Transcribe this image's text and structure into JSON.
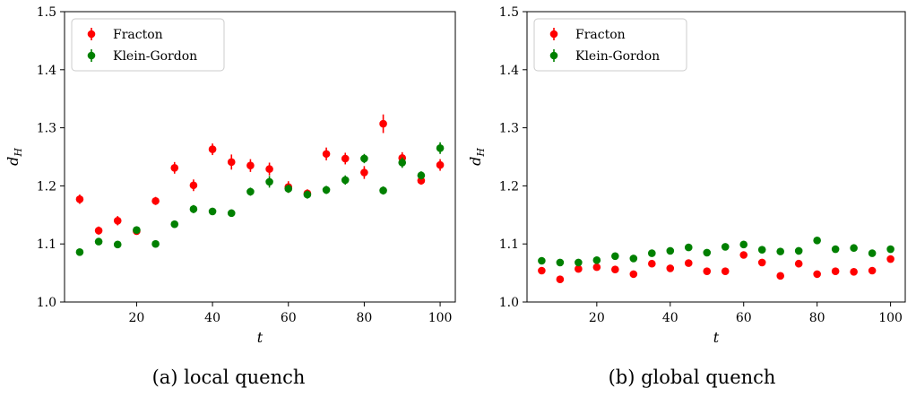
{
  "captions": [
    "(a) local quench",
    "(b) global quench"
  ],
  "chart_data": [
    {
      "type": "scatter",
      "xlabel": "t",
      "ylabel": "d_H",
      "xlim": [
        1,
        104
      ],
      "ylim": [
        1.0,
        1.5
      ],
      "xticks": [
        20,
        40,
        60,
        80,
        100
      ],
      "yticks": [
        1.0,
        1.1,
        1.2,
        1.3,
        1.4,
        1.5
      ],
      "legend_position": "top-left",
      "grid": false,
      "series": [
        {
          "name": "Fracton",
          "color": "#ff0000",
          "x": [
            5,
            10,
            15,
            20,
            25,
            30,
            35,
            40,
            45,
            50,
            55,
            60,
            65,
            70,
            75,
            80,
            85,
            90,
            95,
            100
          ],
          "y": [
            1.177,
            1.123,
            1.14,
            1.122,
            1.174,
            1.231,
            1.201,
            1.263,
            1.241,
            1.235,
            1.229,
            1.198,
            1.187,
            1.255,
            1.247,
            1.223,
            1.307,
            1.248,
            1.209,
            1.236
          ],
          "err": [
            0.008,
            0.007,
            0.008,
            0.006,
            0.007,
            0.01,
            0.01,
            0.01,
            0.013,
            0.011,
            0.011,
            0.01,
            0.007,
            0.011,
            0.01,
            0.011,
            0.016,
            0.01,
            0.007,
            0.01
          ]
        },
        {
          "name": "Klein-Gordon",
          "color": "#008000",
          "x": [
            5,
            10,
            15,
            20,
            25,
            30,
            35,
            40,
            45,
            50,
            55,
            60,
            65,
            70,
            75,
            80,
            85,
            90,
            95,
            100
          ],
          "y": [
            1.086,
            1.104,
            1.099,
            1.124,
            1.1,
            1.134,
            1.16,
            1.156,
            1.153,
            1.19,
            1.207,
            1.195,
            1.185,
            1.193,
            1.21,
            1.247,
            1.192,
            1.24,
            1.218,
            1.265
          ],
          "err": [
            0.004,
            0.005,
            0.004,
            0.005,
            0.004,
            0.005,
            0.007,
            0.004,
            0.006,
            0.007,
            0.01,
            0.007,
            0.007,
            0.007,
            0.008,
            0.008,
            0.007,
            0.009,
            0.007,
            0.01
          ]
        }
      ]
    },
    {
      "type": "scatter",
      "xlabel": "t",
      "ylabel": "d_H",
      "xlim": [
        1,
        104
      ],
      "ylim": [
        1.0,
        1.5
      ],
      "xticks": [
        20,
        40,
        60,
        80,
        100
      ],
      "yticks": [
        1.0,
        1.1,
        1.2,
        1.3,
        1.4,
        1.5
      ],
      "legend_position": "top-left",
      "grid": false,
      "series": [
        {
          "name": "Fracton",
          "color": "#ff0000",
          "x": [
            5,
            10,
            15,
            20,
            25,
            30,
            35,
            40,
            45,
            50,
            55,
            60,
            65,
            70,
            75,
            80,
            85,
            90,
            95,
            100
          ],
          "y": [
            1.054,
            1.039,
            1.057,
            1.06,
            1.056,
            1.048,
            1.066,
            1.058,
            1.067,
            1.053,
            1.053,
            1.081,
            1.068,
            1.045,
            1.066,
            1.048,
            1.053,
            1.052,
            1.054,
            1.074
          ],
          "err": [
            0.004,
            0.003,
            0.004,
            0.003,
            0.003,
            0.003,
            0.004,
            0.003,
            0.004,
            0.003,
            0.003,
            0.005,
            0.004,
            0.003,
            0.004,
            0.003,
            0.003,
            0.003,
            0.003,
            0.005
          ]
        },
        {
          "name": "Klein-Gordon",
          "color": "#008000",
          "x": [
            5,
            10,
            15,
            20,
            25,
            30,
            35,
            40,
            45,
            50,
            55,
            60,
            65,
            70,
            75,
            80,
            85,
            90,
            95,
            100
          ],
          "y": [
            1.071,
            1.068,
            1.068,
            1.072,
            1.079,
            1.075,
            1.084,
            1.088,
            1.094,
            1.085,
            1.095,
            1.099,
            1.09,
            1.087,
            1.088,
            1.106,
            1.091,
            1.093,
            1.084,
            1.091
          ],
          "err": [
            0.003,
            0.003,
            0.003,
            0.003,
            0.003,
            0.003,
            0.003,
            0.003,
            0.003,
            0.003,
            0.003,
            0.004,
            0.003,
            0.003,
            0.003,
            0.004,
            0.003,
            0.003,
            0.003,
            0.003
          ]
        }
      ]
    }
  ]
}
